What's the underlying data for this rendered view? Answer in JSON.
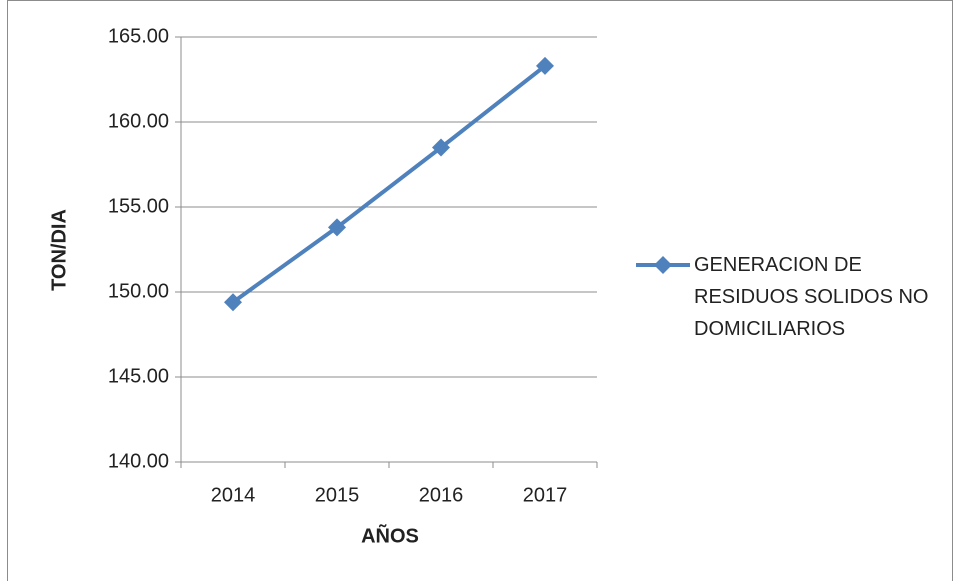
{
  "chart_data": {
    "type": "line",
    "x_label": "AÑOS",
    "y_label": "TON/DIA",
    "categories": [
      "2014",
      "2015",
      "2016",
      "2017"
    ],
    "series": [
      {
        "name": "GENERACION DE RESIDUOS SOLIDOS NO DOMICILIARIOS",
        "color": "#4f81bd",
        "values": [
          149.4,
          153.8,
          158.5,
          163.3
        ]
      }
    ],
    "ylim": [
      140,
      165
    ],
    "yticks": [
      {
        "value": 140,
        "label": "140.00"
      },
      {
        "value": 145,
        "label": "145.00"
      },
      {
        "value": 150,
        "label": "150.00"
      },
      {
        "value": 155,
        "label": "155.00"
      },
      {
        "value": 160,
        "label": "160.00"
      },
      {
        "value": 165,
        "label": "165.00"
      }
    ],
    "grid": true,
    "legend": "right"
  }
}
